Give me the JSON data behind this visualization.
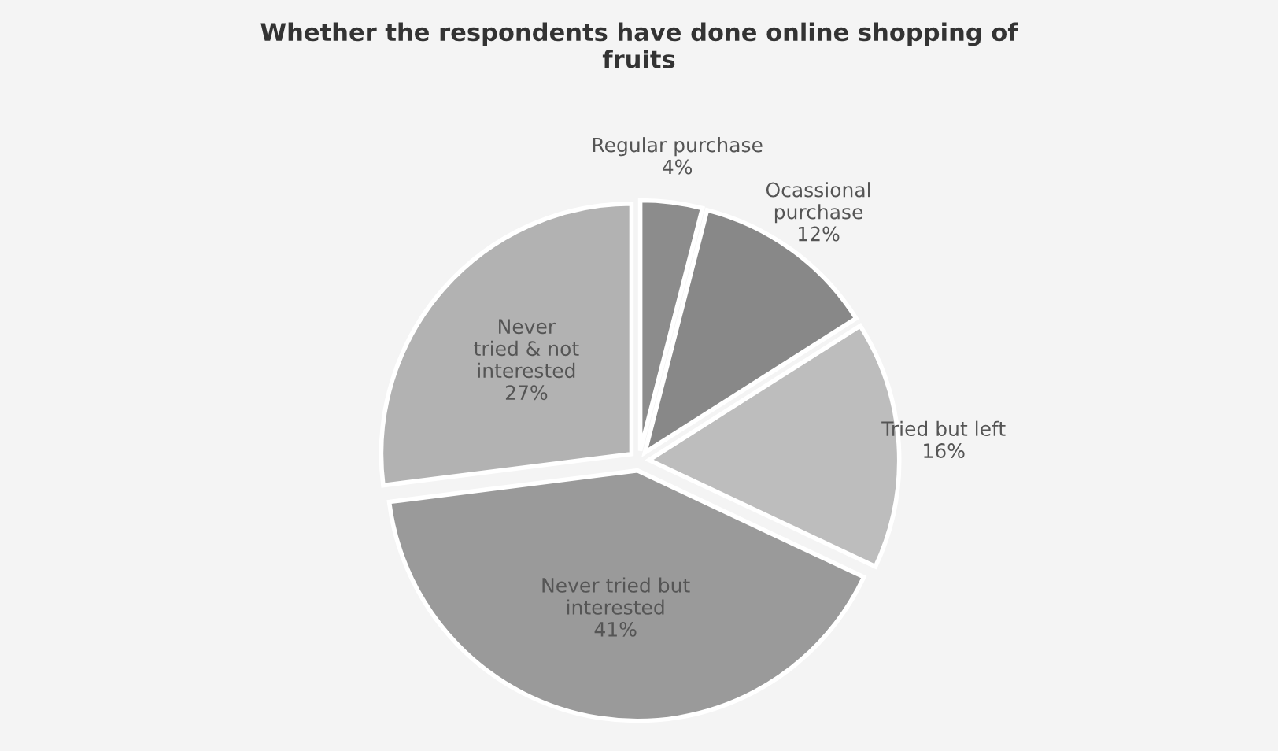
{
  "chart_data": {
    "type": "pie",
    "title": "Whether the respondents have done online shopping of\nfruits",
    "categories": [
      "Regular purchase",
      "Ocassional\npurchase",
      "Tried but left",
      "Never tried but\ninterested",
      "Never\ntried & not\ninterested"
    ],
    "values": [
      4,
      12,
      16,
      41,
      27
    ],
    "colors": [
      "#8c8c8c",
      "#888888",
      "#bdbdbd",
      "#9a9a9a",
      "#b2b2b2"
    ],
    "value_labels": [
      "4%",
      "12%",
      "16%",
      "41%",
      "27%"
    ]
  }
}
